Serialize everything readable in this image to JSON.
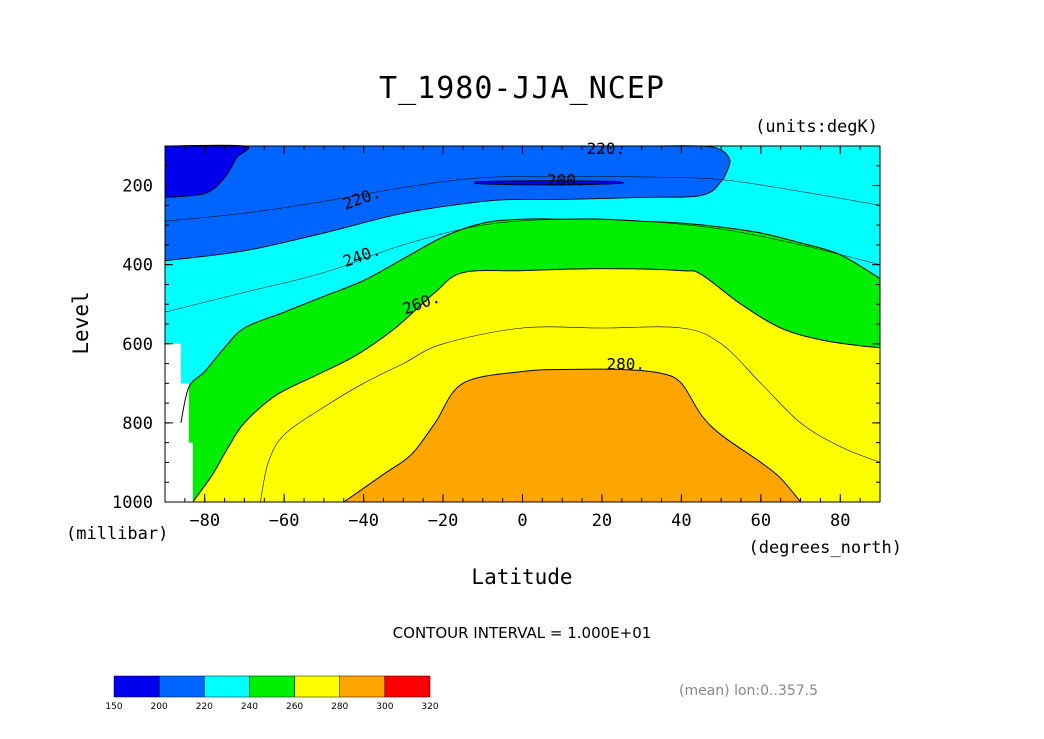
{
  "chart_data": {
    "type": "heatmap",
    "title": "T_1980-JJA_NCEP",
    "units_label": "(units:degK)",
    "xlabel": "Latitude",
    "x_units_label": "(degrees_north)",
    "ylabel": "Level",
    "y_units_label": "(millibar)",
    "xlim": [
      -90,
      90
    ],
    "ylim": [
      1000,
      100
    ],
    "x_ticks": [
      -80,
      -60,
      -40,
      -20,
      0,
      20,
      40,
      60,
      80
    ],
    "x_tick_labels": [
      "−80",
      "−60",
      "−40",
      "−20",
      "0",
      "20",
      "40",
      "60",
      "80"
    ],
    "y_ticks": [
      200,
      400,
      600,
      800,
      1000
    ],
    "y_tick_labels": [
      "200",
      "400",
      "600",
      "800",
      "1000"
    ],
    "contour_interval_text": "CONTOUR INTERVAL = 1.000E+01",
    "averaging_note": "(mean) lon:0..357.5",
    "colorbar": {
      "levels": [
        "150",
        "200",
        "220",
        "240",
        "260",
        "280",
        "300",
        "320"
      ],
      "colors": [
        "#0000ee",
        "#0064ff",
        "#00ffff",
        "#00ee00",
        "#ffff00",
        "#ffa500",
        "#ff0000"
      ]
    },
    "contour_labels": [
      {
        "text": "220.",
        "lat": 21,
        "p": 120
      },
      {
        "text": "200.",
        "lat": 11,
        "p": 200
      },
      {
        "text": "220.",
        "lat": -40,
        "p": 245
      },
      {
        "text": "240.",
        "lat": -40,
        "p": 390
      },
      {
        "text": "260.",
        "lat": -25,
        "p": 510
      },
      {
        "text": "280.",
        "lat": 26,
        "p": 665
      }
    ],
    "bands": [
      {
        "from": 200,
        "color": "#0064ff",
        "edge_lat": [
          -90,
          -70,
          -50,
          -30,
          -10,
          0,
          10,
          30,
          45,
          50,
          52,
          52,
          50,
          45,
          30,
          10,
          -10,
          -30,
          -50,
          -70,
          -90
        ],
        "edge_p": [
          390,
          365,
          320,
          270,
          240,
          235,
          235,
          230,
          225,
          190,
          150,
          130,
          110,
          100,
          100,
          100,
          100,
          100,
          100,
          100,
          100
        ]
      },
      {
        "from": 150,
        "color": "#0000ee",
        "edge_lat": [
          -90,
          -80,
          -75,
          -72,
          -70,
          -90
        ],
        "edge_p": [
          230,
          220,
          180,
          130,
          100,
          100
        ]
      },
      {
        "from": 150,
        "color": "#0000ee",
        "edge_lat": [
          -12,
          0,
          12,
          24,
          24,
          12,
          0,
          -12
        ],
        "edge_p": [
          195,
          198,
          198,
          195,
          190,
          188,
          188,
          190
        ]
      }
    ],
    "warm_bands": [
      {
        "from": 240,
        "color": "#00ee00",
        "lat": [
          -86,
          -84,
          -80,
          -75,
          -70,
          -60,
          -50,
          -40,
          -30,
          -20,
          -10,
          0,
          10,
          20,
          30,
          40,
          50,
          60,
          70,
          80,
          90
        ],
        "p": [
          800,
          710,
          670,
          610,
          560,
          520,
          480,
          440,
          385,
          330,
          295,
          285,
          285,
          285,
          290,
          295,
          305,
          320,
          345,
          375,
          435
        ]
      },
      {
        "from": 260,
        "color": "#ffff00",
        "lat": [
          -83,
          -78,
          -74,
          -70,
          -62,
          -52,
          -42,
          -32,
          -22,
          -15,
          0,
          20,
          40,
          45,
          55,
          65,
          75,
          85,
          90
        ],
        "p": [
          1000,
          930,
          860,
          800,
          730,
          680,
          630,
          560,
          470,
          420,
          415,
          410,
          415,
          425,
          500,
          560,
          590,
          605,
          610
        ]
      },
      {
        "from": 270,
        "color": "#ffff00",
        "lat": [
          -66,
          -64,
          -60,
          -50,
          -40,
          -30,
          -20,
          0,
          20,
          40,
          50,
          60,
          70,
          80,
          90
        ],
        "p": [
          1000,
          900,
          830,
          760,
          700,
          650,
          600,
          560,
          560,
          560,
          600,
          700,
          800,
          860,
          900
        ]
      },
      {
        "from": 280,
        "color": "#ffa500",
        "lat": [
          -45,
          -35,
          -28,
          -22,
          -15,
          0,
          10,
          25,
          35,
          40,
          45,
          50,
          60,
          65,
          70
        ],
        "p": [
          1000,
          930,
          880,
          800,
          700,
          670,
          665,
          665,
          675,
          700,
          780,
          830,
          900,
          940,
          1000
        ]
      }
    ]
  }
}
